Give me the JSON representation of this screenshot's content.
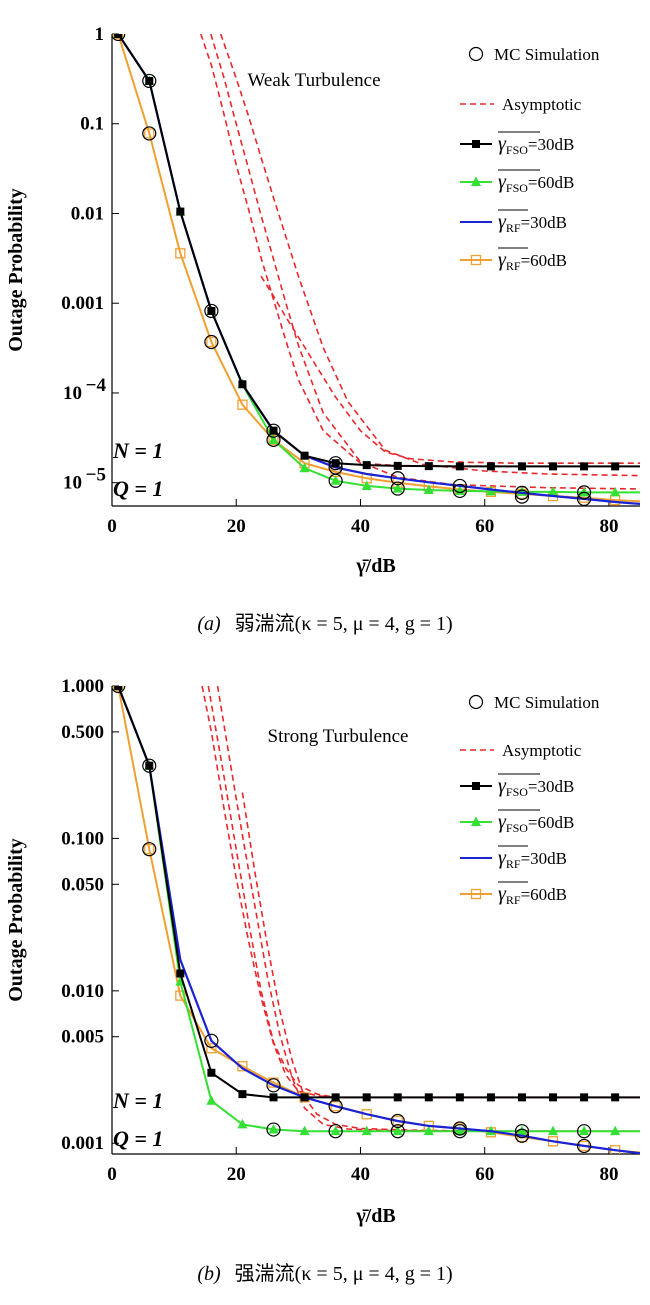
{
  "colors": {
    "fso30": "#000000",
    "fso60": "#33e033",
    "rf30": "#1a22d6",
    "rf60": "#f0a030",
    "asym": "#e8282c",
    "mc": "#000000"
  },
  "chart_data": [
    {
      "type": "line",
      "title": "Weak Turbulence",
      "xlabel": "γ̄/dB",
      "ylabel": "Outage Probability",
      "xlim": [
        0,
        85
      ],
      "ylim": [
        5.5e-06,
        1
      ],
      "yscale": "log",
      "xticks": [
        0,
        20,
        40,
        60,
        80
      ],
      "yticks": [
        {
          "v": 1,
          "label": "1"
        },
        {
          "v": 0.1,
          "label": "0.1"
        },
        {
          "v": 0.01,
          "label": "0.01"
        },
        {
          "v": 0.001,
          "label": "0.001"
        },
        {
          "v": 0.0001,
          "label": "10",
          "exp": "−4"
        },
        {
          "v": 1e-05,
          "label": "10",
          "exp": "−5"
        }
      ],
      "annotation": {
        "N": "N = 1",
        "Q": "Q = 1"
      },
      "legend": {
        "mc": "MC Simulation",
        "asym": "Asymptotic",
        "fso30": {
          "sym": "γ",
          "sub": "FSO",
          "val": "=30dB"
        },
        "fso60": {
          "sym": "γ",
          "sub": "FSO",
          "val": "=60dB"
        },
        "rf30": {
          "sym": "γ",
          "sub": "RF",
          "val": "=30dB"
        },
        "rf60": {
          "sym": "γ",
          "sub": "RF",
          "val": "=60dB"
        }
      },
      "caption": {
        "label": "(a)",
        "text": "弱湍流(κ = 5, μ = 4, g = 1)"
      },
      "series": [
        {
          "key": "fso30",
          "marker": "square-filled",
          "x": [
            1,
            6,
            11,
            16,
            21,
            26,
            31,
            36,
            41,
            46,
            51,
            56,
            61,
            66,
            71,
            76,
            81,
            85
          ],
          "y": [
            1,
            0.3,
            0.0105,
            0.00082,
            0.000125,
            3.8e-05,
            2e-05,
            1.65e-05,
            1.57e-05,
            1.54e-05,
            1.53e-05,
            1.52e-05,
            1.52e-05,
            1.52e-05,
            1.52e-05,
            1.52e-05,
            1.52e-05,
            1.52e-05
          ]
        },
        {
          "key": "fso60",
          "marker": "triangle-filled",
          "x": [
            1,
            6,
            11,
            16,
            21,
            26,
            31,
            36,
            41,
            46,
            51,
            56,
            61,
            66,
            71,
            76,
            81,
            85
          ],
          "y": [
            1,
            0.3,
            0.0105,
            0.00082,
            0.000125,
            3e-05,
            1.45e-05,
            1.05e-05,
            9.2e-06,
            8.6e-06,
            8.3e-06,
            8.1e-06,
            8e-06,
            7.9e-06,
            7.9e-06,
            7.8e-06,
            7.8e-06,
            7.8e-06
          ]
        },
        {
          "key": "rf30",
          "marker": "none",
          "x": [
            1,
            6,
            11,
            16,
            21,
            26,
            31,
            36,
            41,
            46,
            51,
            56,
            61,
            66,
            71,
            76,
            81,
            85
          ],
          "y": [
            1,
            0.3,
            0.0105,
            0.00082,
            0.000125,
            3.8e-05,
            2e-05,
            1.48e-05,
            1.25e-05,
            1.12e-05,
            1.01e-05,
            9.2e-06,
            8.4e-06,
            7.7e-06,
            7.1e-06,
            6.6e-06,
            6.1e-06,
            5.8e-06
          ]
        },
        {
          "key": "rf60",
          "marker": "square-open",
          "x": [
            1,
            6,
            11,
            16,
            21,
            26,
            31,
            36,
            41,
            46,
            51,
            56,
            61,
            66,
            71,
            76,
            81,
            85
          ],
          "y": [
            1,
            0.078,
            0.0036,
            0.00037,
            7.4e-05,
            3e-05,
            1.65e-05,
            1.32e-05,
            1.12e-05,
            1e-05,
            9.1e-06,
            8.4e-06,
            7.9e-06,
            7.5e-06,
            7.1e-06,
            6.8e-06,
            6.4e-06,
            6.2e-06
          ]
        }
      ],
      "asymptotic": [
        {
          "x": [
            14.3,
            16,
            18,
            20,
            22,
            24,
            26,
            28,
            30,
            34,
            40,
            46,
            55,
            70,
            85
          ],
          "y": [
            1,
            0.45,
            0.13,
            0.035,
            0.011,
            0.0032,
            0.0011,
            0.00038,
            0.00014,
            3.8e-05,
            1.65e-05,
            1.55e-05,
            1.53e-05,
            1.52e-05,
            1.52e-05
          ]
        },
        {
          "x": [
            15.9,
            18,
            20,
            22,
            24,
            26,
            28,
            30,
            34,
            40,
            46,
            55,
            70,
            85
          ],
          "y": [
            1,
            0.33,
            0.1,
            0.031,
            0.0095,
            0.0031,
            0.001,
            0.00034,
            6e-05,
            1.7e-05,
            1.15e-05,
            9.5e-06,
            8.8e-06,
            8.5e-06
          ]
        },
        {
          "x": [
            17.5,
            20,
            22,
            24,
            26,
            28,
            30,
            32,
            34,
            38,
            44,
            50,
            60,
            70,
            85
          ],
          "y": [
            1,
            0.32,
            0.12,
            0.042,
            0.015,
            0.0055,
            0.002,
            0.0008,
            0.00032,
            8e-05,
            2.3e-05,
            1.6e-05,
            1.35e-05,
            1.25e-05,
            1.2e-05
          ]
        },
        {
          "x": [
            24,
            26,
            28,
            30,
            32,
            34,
            36,
            40,
            44,
            48,
            55,
            65,
            75,
            85
          ],
          "y": [
            0.002,
            0.0012,
            0.0007,
            0.00042,
            0.00025,
            0.00015,
            9e-05,
            3.8e-05,
            2.2e-05,
            1.85e-05,
            1.7e-05,
            1.65e-05,
            1.65e-05,
            1.65e-05
          ]
        }
      ],
      "mc": {
        "x": [
          1,
          6,
          6,
          16,
          16,
          26,
          26,
          36,
          36,
          36,
          46,
          46,
          56,
          56,
          66,
          66,
          76,
          76
        ],
        "y": [
          1,
          0.3,
          0.078,
          0.00082,
          0.00037,
          3.8e-05,
          3e-05,
          1.65e-05,
          1.48e-05,
          1.05e-05,
          1.12e-05,
          8.6e-06,
          9.2e-06,
          8.1e-06,
          7.7e-06,
          7e-06,
          6.6e-06,
          7.8e-06
        ]
      }
    },
    {
      "type": "line",
      "title": "Strong Turbulence",
      "xlabel": "γ̄/dB",
      "ylabel": "Outage Probability",
      "xlim": [
        0,
        85
      ],
      "ylim": [
        0.00085,
        1
      ],
      "yscale": "log",
      "xticks": [
        0,
        20,
        40,
        60,
        80
      ],
      "yticks": [
        {
          "v": 1,
          "label": "1.000"
        },
        {
          "v": 0.5,
          "label": "0.500"
        },
        {
          "v": 0.1,
          "label": "0.100"
        },
        {
          "v": 0.05,
          "label": "0.050"
        },
        {
          "v": 0.01,
          "label": "0.010"
        },
        {
          "v": 0.005,
          "label": "0.005"
        },
        {
          "v": 0.001,
          "label": "0.001"
        }
      ],
      "annotation": {
        "N": "N = 1",
        "Q": "Q = 1"
      },
      "legend": {
        "mc": "MC Simulation",
        "asym": "Asymptotic",
        "fso30": {
          "sym": "γ",
          "sub": "FSO",
          "val": "=30dB"
        },
        "fso60": {
          "sym": "γ",
          "sub": "FSO",
          "val": "=60dB"
        },
        "rf30": {
          "sym": "γ",
          "sub": "RF",
          "val": "=30dB"
        },
        "rf60": {
          "sym": "γ",
          "sub": "RF",
          "val": "=60dB"
        }
      },
      "caption": {
        "label": "(b)",
        "text": "强湍流(κ = 5, μ = 4, g = 1)"
      },
      "series": [
        {
          "key": "fso30",
          "marker": "square-filled",
          "x": [
            1,
            6,
            11,
            16,
            21,
            26,
            31,
            36,
            41,
            46,
            51,
            56,
            61,
            66,
            71,
            76,
            81,
            85
          ],
          "y": [
            1,
            0.3,
            0.013,
            0.0029,
            0.0021,
            0.002,
            0.002,
            0.002,
            0.002,
            0.002,
            0.002,
            0.002,
            0.002,
            0.002,
            0.002,
            0.002,
            0.002,
            0.002
          ]
        },
        {
          "key": "fso60",
          "marker": "triangle-filled",
          "x": [
            1,
            6,
            11,
            16,
            21,
            26,
            31,
            36,
            41,
            46,
            51,
            56,
            61,
            66,
            71,
            76,
            81,
            85
          ],
          "y": [
            1,
            0.3,
            0.0115,
            0.0019,
            0.00133,
            0.00123,
            0.0012,
            0.0012,
            0.0012,
            0.0012,
            0.0012,
            0.0012,
            0.0012,
            0.0012,
            0.0012,
            0.0012,
            0.0012,
            0.0012
          ]
        },
        {
          "key": "rf30",
          "marker": "none",
          "x": [
            1,
            6,
            11,
            16,
            21,
            26,
            31,
            36,
            41,
            46,
            51,
            56,
            61,
            66,
            71,
            76,
            81,
            85
          ],
          "y": [
            1,
            0.3,
            0.016,
            0.0047,
            0.0031,
            0.0024,
            0.002,
            0.00175,
            0.00155,
            0.0014,
            0.0013,
            0.00125,
            0.0012,
            0.00112,
            0.00103,
            0.00096,
            0.0009,
            0.00086
          ]
        },
        {
          "key": "rf60",
          "marker": "square-open",
          "x": [
            1,
            6,
            11,
            16,
            21,
            26,
            31,
            36,
            41,
            46,
            51,
            56,
            61,
            66,
            71,
            76,
            81,
            85
          ],
          "y": [
            1,
            0.085,
            0.0093,
            0.0042,
            0.0032,
            0.0025,
            0.002,
            0.00175,
            0.00155,
            0.0014,
            0.0013,
            0.00125,
            0.00118,
            0.0011,
            0.00103,
            0.00096,
            0.0009,
            0.00087
          ]
        }
      ],
      "asymptotic": [
        {
          "x": [
            14.5,
            16,
            18,
            20,
            22,
            24,
            26,
            28,
            30,
            33,
            36,
            45,
            60,
            85
          ],
          "y": [
            1,
            0.5,
            0.16,
            0.055,
            0.021,
            0.009,
            0.0045,
            0.0028,
            0.0022,
            0.00205,
            0.002,
            0.002,
            0.002,
            0.002
          ]
        },
        {
          "x": [
            15.5,
            18,
            20,
            22,
            24,
            26,
            28,
            30,
            33,
            36,
            45,
            60,
            85
          ],
          "y": [
            1,
            0.26,
            0.085,
            0.028,
            0.01,
            0.0046,
            0.0031,
            0.0024,
            0.0021,
            0.002,
            0.002,
            0.002,
            0.002
          ]
        },
        {
          "x": [
            17,
            19,
            21,
            23,
            25,
            27,
            29,
            31,
            34,
            38,
            45,
            60,
            85
          ],
          "y": [
            1,
            0.32,
            0.105,
            0.036,
            0.0125,
            0.0052,
            0.0027,
            0.0017,
            0.00133,
            0.00124,
            0.00121,
            0.0012,
            0.0012
          ]
        },
        {
          "x": [
            21,
            23,
            25,
            27,
            29,
            31,
            33,
            36,
            40,
            48,
            60,
            85
          ],
          "y": [
            0.2,
            0.06,
            0.02,
            0.0075,
            0.0035,
            0.002,
            0.00155,
            0.00133,
            0.00125,
            0.00122,
            0.0012,
            0.0012
          ]
        }
      ],
      "mc": {
        "x": [
          1,
          6,
          6,
          16,
          26,
          26,
          36,
          36,
          46,
          46,
          56,
          56,
          66,
          66,
          76,
          76
        ],
        "y": [
          1,
          0.3,
          0.085,
          0.0047,
          0.0024,
          0.00123,
          0.00175,
          0.0012,
          0.0014,
          0.0012,
          0.00125,
          0.0012,
          0.00112,
          0.0012,
          0.00096,
          0.0012
        ]
      }
    }
  ]
}
